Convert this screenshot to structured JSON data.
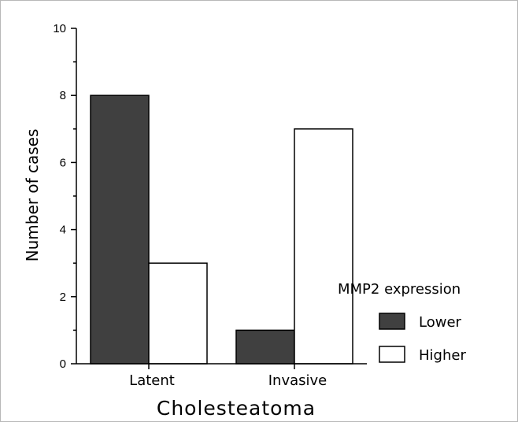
{
  "chart_data": {
    "type": "bar",
    "categories": [
      "Latent",
      "Invasive"
    ],
    "series": [
      {
        "name": "Lower",
        "values": [
          8,
          1
        ],
        "color": "#404040"
      },
      {
        "name": "Higher",
        "values": [
          3,
          7
        ],
        "color": "#ffffff"
      }
    ],
    "xlabel": "Cholesteatoma",
    "ylabel": "Number of cases",
    "ylim": [
      0,
      10
    ],
    "yticks": [
      0,
      2,
      4,
      6,
      8,
      10
    ],
    "legend": {
      "title": "MMP2 expression",
      "placement": "right"
    },
    "grid": false
  }
}
